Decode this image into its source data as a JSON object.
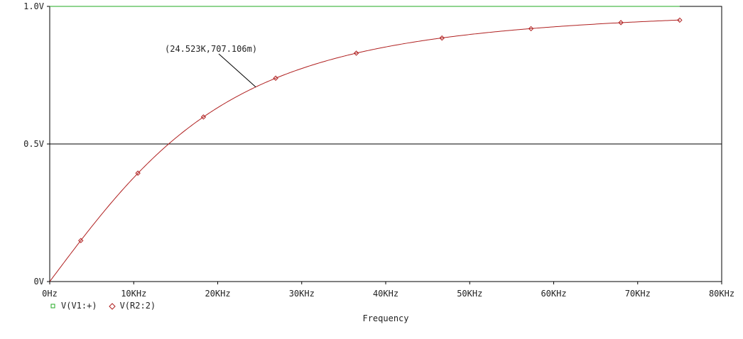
{
  "chart_data": {
    "type": "line",
    "xlabel": "Frequency",
    "xlim": [
      0,
      80000
    ],
    "ylim": [
      0,
      1.0
    ],
    "xticks": [
      {
        "value": 0,
        "label": "0Hz"
      },
      {
        "value": 10000,
        "label": "10KHz"
      },
      {
        "value": 20000,
        "label": "20KHz"
      },
      {
        "value": 30000,
        "label": "30KHz"
      },
      {
        "value": 40000,
        "label": "40KHz"
      },
      {
        "value": 50000,
        "label": "50KHz"
      },
      {
        "value": 60000,
        "label": "60KHz"
      },
      {
        "value": 70000,
        "label": "70KHz"
      },
      {
        "value": 80000,
        "label": "80KHz"
      }
    ],
    "yticks": [
      {
        "value": 0,
        "label": "0V"
      },
      {
        "value": 0.5,
        "label": "0.5V"
      },
      {
        "value": 1.0,
        "label": "1.0V"
      }
    ],
    "series": [
      {
        "name": "V(V1:+)",
        "color": "#22aa22",
        "marker": "square",
        "x": [
          0,
          75000
        ],
        "values": [
          1.0,
          1.0
        ]
      },
      {
        "name": "V(R2:2)",
        "color": "#b02020",
        "marker": "diamond",
        "cutoff_hz": 24523,
        "x": [
          0,
          3700,
          10500,
          18300,
          26900,
          36500,
          46700,
          57300,
          68000,
          75000
        ],
        "values": [
          0,
          0.149,
          0.394,
          0.598,
          0.739,
          0.83,
          0.885,
          0.919,
          0.941,
          0.95
        ]
      }
    ],
    "annotations": [
      {
        "text": "(24.523K,707.106m)",
        "x": 24523,
        "y": 0.707
      }
    ],
    "hlines": [
      0.5
    ],
    "grid": false,
    "legend": "bottom-left"
  }
}
